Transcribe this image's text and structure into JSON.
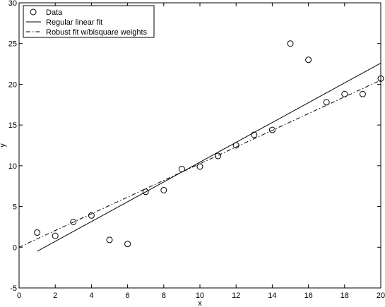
{
  "chart_data": {
    "type": "scatter",
    "title": "",
    "xlabel": "x",
    "ylabel": "y",
    "xlim": [
      0,
      20
    ],
    "ylim": [
      -5,
      30
    ],
    "xticks": [
      0,
      2,
      4,
      6,
      8,
      10,
      12,
      14,
      16,
      18,
      20
    ],
    "yticks": [
      -5,
      0,
      5,
      10,
      15,
      20,
      25,
      30
    ],
    "grid": false,
    "legend_position": "top-left",
    "series": [
      {
        "name": "Data",
        "kind": "markers",
        "marker": "circle",
        "x": [
          1,
          2,
          3,
          4,
          5,
          6,
          7,
          8,
          9,
          10,
          11,
          12,
          13,
          14,
          15,
          16,
          17,
          18,
          19,
          20
        ],
        "y": [
          1.8,
          1.4,
          3.1,
          3.9,
          0.9,
          0.4,
          6.8,
          7.0,
          9.6,
          9.9,
          11.2,
          12.5,
          13.8,
          14.4,
          25.0,
          23.0,
          17.8,
          18.8,
          18.8,
          20.7
        ]
      },
      {
        "name": "Regular linear fit",
        "kind": "line",
        "style": "solid",
        "x": [
          1,
          20
        ],
        "y": [
          -0.5,
          22.6
        ]
      },
      {
        "name": "Robust fit w/bisquare weights",
        "kind": "line",
        "style": "dashdot",
        "x": [
          0,
          20
        ],
        "y": [
          0,
          20.5
        ]
      }
    ]
  }
}
